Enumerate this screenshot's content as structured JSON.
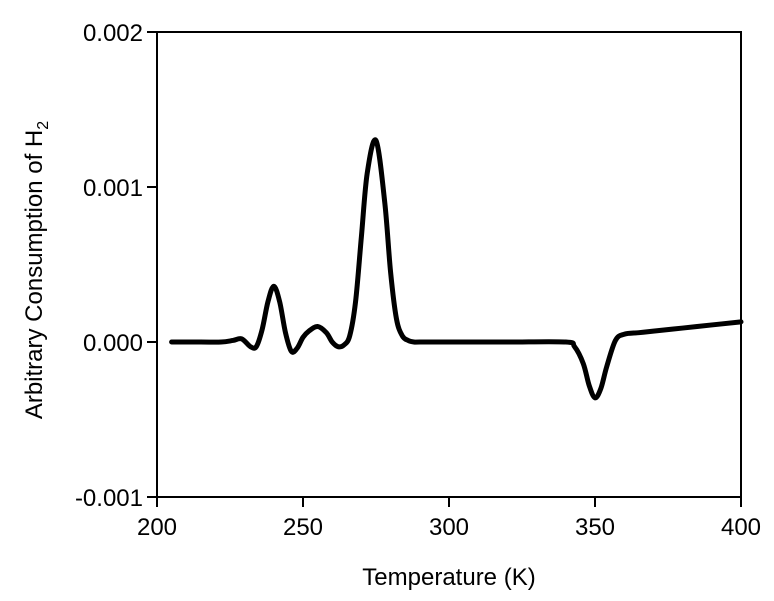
{
  "chart_data": {
    "type": "line",
    "title": "",
    "xlabel": "Temperature (K)",
    "ylabel": "Arbitrary Consumption of H",
    "ylabel_subscript": "2",
    "xlim": [
      200,
      400
    ],
    "ylim": [
      -0.001,
      0.002
    ],
    "grid": false,
    "legend": "none",
    "line_color": "#000000",
    "x_ticks": [
      200,
      250,
      300,
      350,
      400
    ],
    "x_tick_labels": [
      "200",
      "250",
      "300",
      "350",
      "400"
    ],
    "y_ticks": [
      -0.001,
      0.0,
      0.001,
      0.002
    ],
    "y_tick_labels": [
      "-0.001",
      "0.000",
      "0.001",
      "0.002"
    ],
    "series": [
      {
        "x": [
          205,
          215,
          222,
          226,
          229,
          232,
          234,
          236,
          238,
          240,
          242,
          244,
          246,
          248,
          250,
          252,
          255,
          258,
          260,
          262,
          264,
          266,
          268,
          270,
          272,
          275,
          278,
          280,
          282,
          284,
          286,
          288,
          290,
          300,
          320,
          340,
          343,
          346,
          348,
          350,
          352,
          354,
          357,
          360,
          365,
          370,
          380,
          390,
          400
        ],
        "y": [
          0.0,
          0.0,
          0.0,
          1e-05,
          2e-05,
          -3e-05,
          -3e-05,
          8e-05,
          0.00026,
          0.00036,
          0.00026,
          6e-05,
          -6e-05,
          -4e-05,
          3e-05,
          7e-05,
          0.0001,
          6e-05,
          0.0,
          -3e-05,
          -2e-05,
          4e-05,
          0.00026,
          0.00068,
          0.00109,
          0.0013,
          0.0009,
          0.00045,
          0.00015,
          4e-05,
          1e-05,
          0.0,
          0.0,
          0.0,
          0.0,
          0.0,
          -3e-05,
          -0.00014,
          -0.00028,
          -0.00036,
          -0.0003,
          -0.00016,
          1e-05,
          5e-05,
          6e-05,
          7e-05,
          9e-05,
          0.00011,
          0.00013
        ]
      }
    ]
  }
}
